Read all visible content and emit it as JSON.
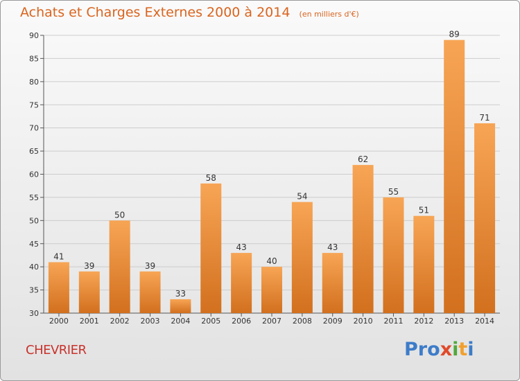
{
  "title": "Achats et Charges Externes 2000 à 2014",
  "subtitle": "(en milliers d'€)",
  "city": "CHEVRIER",
  "brand": {
    "letters": [
      "P",
      "r",
      "o",
      "x",
      "i",
      "t",
      "i"
    ]
  },
  "colors": {
    "title": "#d9641e",
    "city": "#c8322c",
    "bar_top": "#f7a555",
    "bar_bottom": "#d2701e",
    "grid": "#cccccc",
    "brand": [
      "#3d7cc9",
      "#3d7cc9",
      "#3d7cc9",
      "#e04a2a",
      "#52a83a",
      "#f0a030",
      "#3d7cc9"
    ]
  },
  "chart_data": {
    "type": "bar",
    "categories": [
      "2000",
      "2001",
      "2002",
      "2003",
      "2004",
      "2005",
      "2006",
      "2007",
      "2008",
      "2009",
      "2010",
      "2011",
      "2012",
      "2013",
      "2014"
    ],
    "values": [
      41,
      39,
      50,
      39,
      33,
      58,
      43,
      40,
      54,
      43,
      62,
      55,
      51,
      89,
      71
    ],
    "ylim": [
      30,
      90
    ],
    "yticks": [
      30,
      35,
      40,
      45,
      50,
      55,
      60,
      65,
      70,
      75,
      80,
      85,
      90
    ],
    "grid": true,
    "xlabel": "",
    "ylabel": ""
  }
}
